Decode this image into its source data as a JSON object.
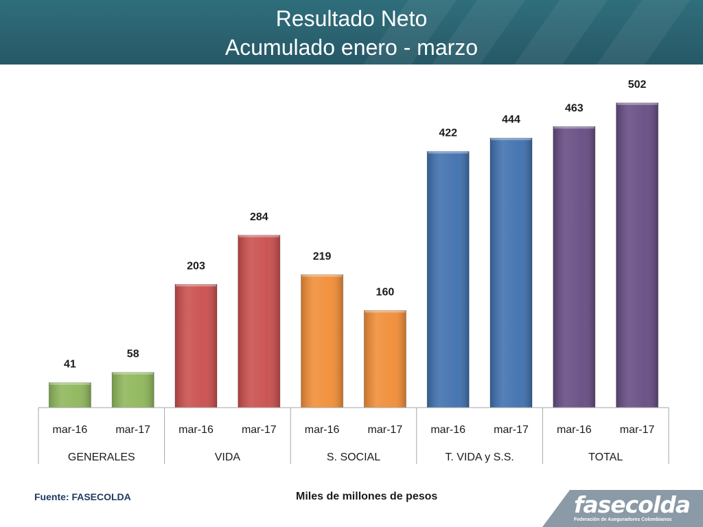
{
  "header": {
    "title_line1": "Resultado Neto",
    "title_line2": "Acumulado  enero - marzo"
  },
  "footer": {
    "source": "Fuente: FASECOLDA",
    "units": "Miles de millones de pesos",
    "logo_text": "fasecolda",
    "logo_subtext": "Federación de Aseguradores Colombianos"
  },
  "chart_data": {
    "type": "bar",
    "title": "Resultado Neto Acumulado enero - marzo",
    "ylabel": "",
    "xlabel": "",
    "ylim": [
      0,
      520
    ],
    "grid": false,
    "groups": [
      {
        "name": "GENERALES",
        "color": "#8db659",
        "bars": [
          {
            "label": "mar-16",
            "value": 41
          },
          {
            "label": "mar-17",
            "value": 58
          }
        ]
      },
      {
        "name": "VIDA",
        "color": "#c94d4b",
        "bars": [
          {
            "label": "mar-16",
            "value": 203
          },
          {
            "label": "mar-17",
            "value": 284
          }
        ]
      },
      {
        "name": "S. SOCIAL",
        "color": "#f08c35",
        "bars": [
          {
            "label": "mar-16",
            "value": 219
          },
          {
            "label": "mar-17",
            "value": 160
          }
        ]
      },
      {
        "name": "T. VIDA y S.S.",
        "color": "#3e6fae",
        "bars": [
          {
            "label": "mar-16",
            "value": 422
          },
          {
            "label": "mar-17",
            "value": 444
          }
        ]
      },
      {
        "name": "TOTAL",
        "color": "#654b82",
        "bars": [
          {
            "label": "mar-16",
            "value": 463
          },
          {
            "label": "mar-17",
            "value": 502
          }
        ]
      }
    ]
  }
}
